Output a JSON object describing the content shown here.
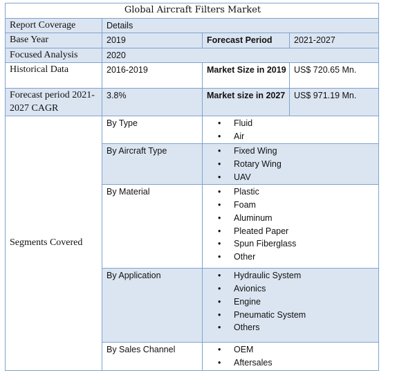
{
  "title": "Global Aircraft Filters Market",
  "header": {
    "col1": "Report Coverage",
    "col2": "Details"
  },
  "rows": {
    "base_year": {
      "label": "Base Year",
      "value": "2019",
      "label2": "Forecast Period",
      "value2": "2021-2027"
    },
    "focused": {
      "label": "Focused Analysis",
      "value": "2020"
    },
    "historical": {
      "label": "Historical Data",
      "value": "2016-2019",
      "label2": "Market Size in 2019",
      "value2": "US$ 720.65 Mn."
    },
    "cagr": {
      "label": "Forecast period 2021-2027 CAGR",
      "value": "3.8%",
      "label2": "Market size in 2027",
      "value2": "US$ 971.19 Mn."
    }
  },
  "segments": {
    "label": "Segments Covered",
    "bullet": "•",
    "groups": [
      {
        "name": "By Type",
        "items": [
          "Fluid",
          "Air"
        ]
      },
      {
        "name": "By Aircraft Type",
        "items": [
          "Fixed Wing",
          "Rotary Wing",
          "UAV"
        ]
      },
      {
        "name": "By Material",
        "items": [
          "Plastic",
          "Foam",
          "Aluminum",
          "Pleated Paper",
          "Spun Fiberglass",
          "Other"
        ]
      },
      {
        "name": "By Application",
        "items": [
          "Hydraulic System",
          "Avionics",
          "Engine",
          "Pneumatic System",
          "Others"
        ]
      },
      {
        "name": "By Sales Channel",
        "items": [
          "OEM",
          "Aftersales"
        ]
      }
    ]
  },
  "colors": {
    "border": "#7ea2cf",
    "shade": "#dbe5f1"
  }
}
